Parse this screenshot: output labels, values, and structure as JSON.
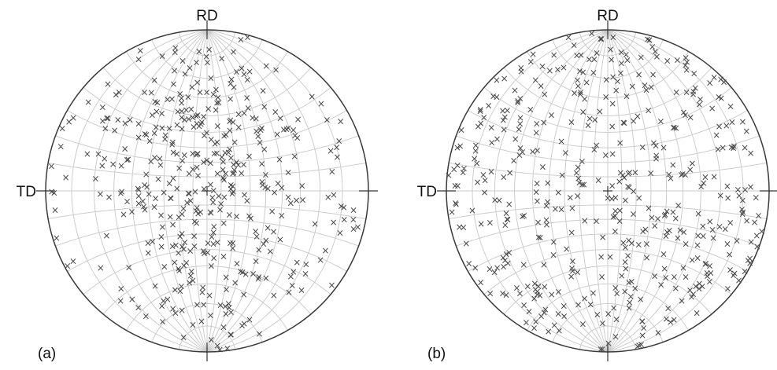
{
  "figure": {
    "panels": [
      {
        "label": "(a)",
        "rd_label": "RD",
        "td_label": "TD",
        "point_count": 430,
        "seed": 11,
        "distribution": "concentrated toward center and along RD axis"
      },
      {
        "label": "(b)",
        "rd_label": "RD",
        "td_label": "TD",
        "point_count": 460,
        "seed": 29,
        "distribution": "roughly uniform over the projection"
      }
    ],
    "colors": {
      "background": "#ffffff",
      "circle": "#3a3a3a",
      "grid": "#c8c8c8",
      "marker": "#4a4a4a",
      "text": "#111111"
    },
    "marker_glyph": "×"
  }
}
